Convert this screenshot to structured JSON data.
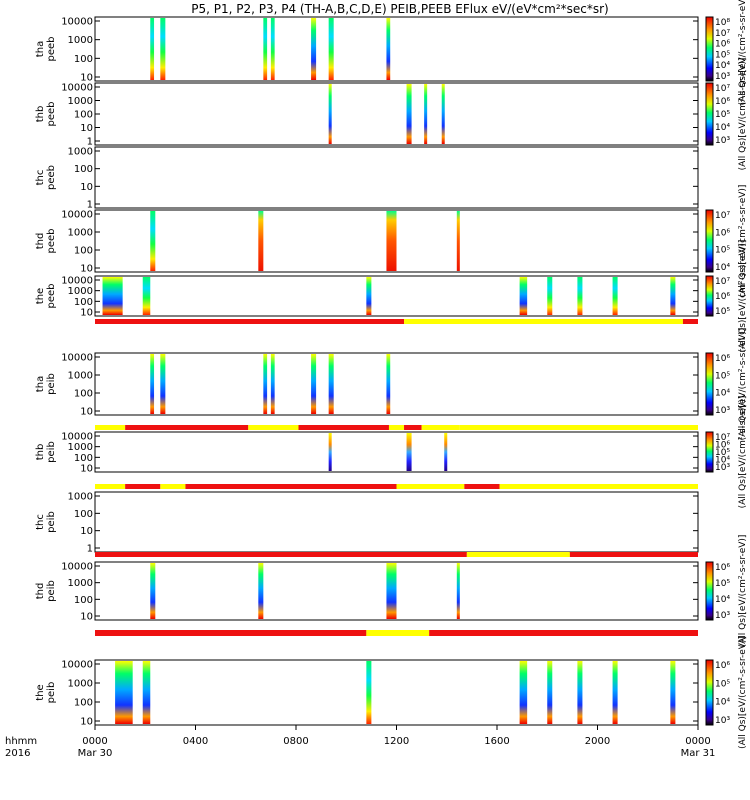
{
  "title": "P5, P1, P2, P3, P4 (TH-A,B,C,D,E) PEIB,PEEB EFlux eV/(eV*cm²*sec*sr)",
  "colors": {
    "flag_red": "#ee1111",
    "flag_yellow": "#ffff00",
    "frame": "#000000"
  },
  "chart_data": {
    "type": "heatmap",
    "x_axis": {
      "row_label_1": "hhmm",
      "row_label_2": "2016",
      "ticks": [
        {
          "t": 0,
          "label": "0000",
          "sublabel": "Mar 30"
        },
        {
          "t": 4,
          "label": "0400",
          "sublabel": ""
        },
        {
          "t": 8,
          "label": "0800",
          "sublabel": ""
        },
        {
          "t": 12,
          "label": "1200",
          "sublabel": ""
        },
        {
          "t": 16,
          "label": "1600",
          "sublabel": ""
        },
        {
          "t": 20,
          "label": "2000",
          "sublabel": ""
        },
        {
          "t": 24,
          "label": "0000",
          "sublabel": "Mar 31"
        }
      ],
      "range_hours": [
        0,
        24
      ]
    },
    "panels": [
      {
        "probe": "tha",
        "inst": "peeb",
        "ylabel": [
          "tha",
          "peeb"
        ],
        "yticks": [
          "10000",
          "1000",
          "100",
          "10"
        ],
        "ylog": [
          0.7,
          4.4
        ],
        "colorbar": {
          "label": "(All Qs)[eV/(cm²-s-sr-eV)]",
          "ticks": [
            "10⁸",
            "10⁷",
            "10⁶",
            "10⁵",
            "10⁴",
            "10³"
          ]
        },
        "bursts": [
          [
            2.2,
            0.15,
            1
          ],
          [
            2.6,
            0.2,
            1
          ],
          [
            6.7,
            0.15,
            1
          ],
          [
            7.0,
            0.15,
            1
          ],
          [
            8.6,
            0.2,
            0
          ],
          [
            9.3,
            0.2,
            1
          ],
          [
            11.6,
            0.15,
            0
          ]
        ]
      },
      {
        "probe": "thb",
        "inst": "peeb",
        "ylabel": [
          "thb",
          "peeb"
        ],
        "yticks": [
          "10000",
          "1000",
          "100",
          "10",
          "1"
        ],
        "ylog": [
          0.9,
          4.4
        ],
        "colorbar": {
          "label": "(All Qs)[eV/(cm²-s-sr-eV)]",
          "ticks": [
            "10⁷",
            "10⁶",
            "10⁵",
            "10⁴",
            "10³"
          ]
        },
        "bursts": [
          [
            9.3,
            0.12,
            0
          ],
          [
            12.4,
            0.2,
            0
          ],
          [
            13.1,
            0.12,
            0
          ],
          [
            13.8,
            0.12,
            0
          ]
        ]
      },
      {
        "probe": "thc",
        "inst": "peeb",
        "ylabel": [
          "thc",
          "peeb"
        ],
        "yticks": [
          "1000",
          "100",
          "10",
          "1"
        ],
        "ylog": [
          -0.1,
          3.1
        ],
        "colorbar": null,
        "bursts": []
      },
      {
        "probe": "thd",
        "inst": "peeb",
        "ylabel": [
          "thd",
          "peeb"
        ],
        "yticks": [
          "10000",
          "1000",
          "100",
          "10"
        ],
        "ylog": [
          0.8,
          4.4
        ],
        "colorbar": {
          "label": "(All Qs)[eV/(cm²-s-sr-eV)]",
          "ticks": [
            "10⁷",
            "10⁶",
            "10⁵",
            "10⁴"
          ]
        },
        "bursts": [
          [
            2.2,
            0.2,
            1
          ],
          [
            6.5,
            0.2,
            2
          ],
          [
            11.6,
            0.4,
            2
          ],
          [
            14.4,
            0.12,
            2
          ]
        ]
      },
      {
        "probe": "the",
        "inst": "peeb",
        "ylabel": [
          "the",
          "peeb"
        ],
        "yticks": [
          "10000",
          "1000",
          "100",
          "10"
        ],
        "ylog": [
          0.8,
          4.4
        ],
        "colorbar": {
          "label": "(All Qs)[eV/(cm²-s-sr-eV)]",
          "ticks": [
            "10⁷",
            "10⁶",
            "10⁵"
          ]
        },
        "bursts": [
          [
            0.3,
            0.8,
            0
          ],
          [
            1.9,
            0.3,
            1
          ],
          [
            10.8,
            0.2,
            0
          ],
          [
            16.9,
            0.3,
            0
          ],
          [
            18.0,
            0.2,
            1
          ],
          [
            19.2,
            0.2,
            1
          ],
          [
            20.6,
            0.2,
            1
          ],
          [
            22.9,
            0.2,
            0
          ]
        ]
      },
      {
        "probe": "tha",
        "inst": "peib",
        "ylabel": [
          "tha",
          "peib"
        ],
        "yticks": [
          "10000",
          "1000",
          "100",
          "10"
        ],
        "ylog": [
          0.7,
          4.4
        ],
        "colorbar": {
          "label": "(All Qs)[eV/(cm²-s-sr-eV)]",
          "ticks": [
            "10⁶",
            "10⁵",
            "10⁴",
            "10³"
          ]
        },
        "bursts": [
          [
            2.2,
            0.15,
            0
          ],
          [
            2.6,
            0.2,
            0
          ],
          [
            6.7,
            0.15,
            0
          ],
          [
            7.0,
            0.15,
            0
          ],
          [
            8.6,
            0.2,
            0
          ],
          [
            9.3,
            0.2,
            0
          ],
          [
            11.6,
            0.15,
            0
          ]
        ]
      },
      {
        "probe": "thb",
        "inst": "peib",
        "ylabel": [
          "thb",
          "peib"
        ],
        "yticks": [
          "10000",
          "1000",
          "100",
          "10"
        ],
        "ylog": [
          0.7,
          4.4
        ],
        "colorbar": {
          "label": "(All Qs)[eV/(cm²-s-sr-eV)]",
          "ticks": [
            "10⁷",
            "10⁶",
            "10⁵",
            "10⁴",
            "10³"
          ]
        },
        "bursts": [
          [
            9.3,
            0.12,
            3
          ],
          [
            12.4,
            0.2,
            3
          ],
          [
            13.9,
            0.12,
            3
          ]
        ]
      },
      {
        "probe": "thc",
        "inst": "peib",
        "ylabel": [
          "thc",
          "peib"
        ],
        "yticks": [
          "1000",
          "100",
          "10",
          "1"
        ],
        "ylog": [
          -0.1,
          3.1
        ],
        "colorbar": null,
        "bursts": []
      },
      {
        "probe": "thd",
        "inst": "peib",
        "ylabel": [
          "thd",
          "peib"
        ],
        "yticks": [
          "10000",
          "1000",
          "100",
          "10"
        ],
        "ylog": [
          0.8,
          4.4
        ],
        "colorbar": {
          "label": "(All Qs)[eV/(cm²-s-sr-eV)]",
          "ticks": [
            "10⁶",
            "10⁵",
            "10⁴",
            "10³"
          ]
        },
        "bursts": [
          [
            2.2,
            0.2,
            0
          ],
          [
            6.5,
            0.2,
            0
          ],
          [
            11.6,
            0.4,
            0
          ],
          [
            14.4,
            0.12,
            0
          ]
        ]
      },
      {
        "probe": "the",
        "inst": "peib",
        "ylabel": [
          "the",
          "peib"
        ],
        "yticks": [
          "10000",
          "1000",
          "100",
          "10"
        ],
        "ylog": [
          0.7,
          4.4
        ],
        "colorbar": {
          "label": "(All Qs)[eV/(cm²-s-sr-eV)]",
          "ticks": [
            "10⁶",
            "10⁵",
            "10⁴",
            "10³"
          ]
        },
        "bursts": [
          [
            0.8,
            0.7,
            0
          ],
          [
            1.9,
            0.3,
            0
          ],
          [
            10.8,
            0.2,
            1
          ],
          [
            16.9,
            0.3,
            0
          ],
          [
            18.0,
            0.2,
            0
          ],
          [
            19.2,
            0.2,
            0
          ],
          [
            20.6,
            0.2,
            0
          ],
          [
            22.9,
            0.2,
            0
          ]
        ]
      }
    ],
    "flag_bars": [
      {
        "after_panel": 4,
        "segments": [
          [
            0,
            12.3,
            "red"
          ],
          [
            12.3,
            23.4,
            "yellow"
          ],
          [
            23.4,
            24,
            "red"
          ]
        ]
      },
      {
        "after_panel": 5,
        "segments": [
          [
            0,
            1.2,
            "yellow"
          ],
          [
            1.2,
            6.1,
            "red"
          ],
          [
            6.1,
            8.1,
            "yellow"
          ],
          [
            8.1,
            11.7,
            "red"
          ],
          [
            11.7,
            12.3,
            "yellow"
          ],
          [
            12.3,
            13.0,
            "red"
          ],
          [
            13.0,
            14.5,
            "yellow"
          ],
          [
            14.5,
            24,
            "yellow"
          ]
        ]
      },
      {
        "after_panel": 6,
        "segments": [
          [
            0,
            1.2,
            "yellow"
          ],
          [
            1.2,
            2.6,
            "red"
          ],
          [
            2.6,
            3.6,
            "yellow"
          ],
          [
            3.6,
            12.0,
            "red"
          ],
          [
            12.0,
            14.7,
            "yellow"
          ],
          [
            14.7,
            16.1,
            "red"
          ],
          [
            16.1,
            24,
            "yellow"
          ]
        ]
      },
      {
        "after_panel": 7,
        "segments": [
          [
            0,
            14.8,
            "red"
          ],
          [
            14.8,
            18.9,
            "yellow"
          ],
          [
            18.9,
            24,
            "red"
          ]
        ]
      },
      {
        "after_panel": 8,
        "segments": [
          [
            0,
            10.8,
            "red"
          ],
          [
            10.8,
            13.3,
            "yellow"
          ],
          [
            13.3,
            24,
            "red"
          ]
        ]
      }
    ]
  }
}
